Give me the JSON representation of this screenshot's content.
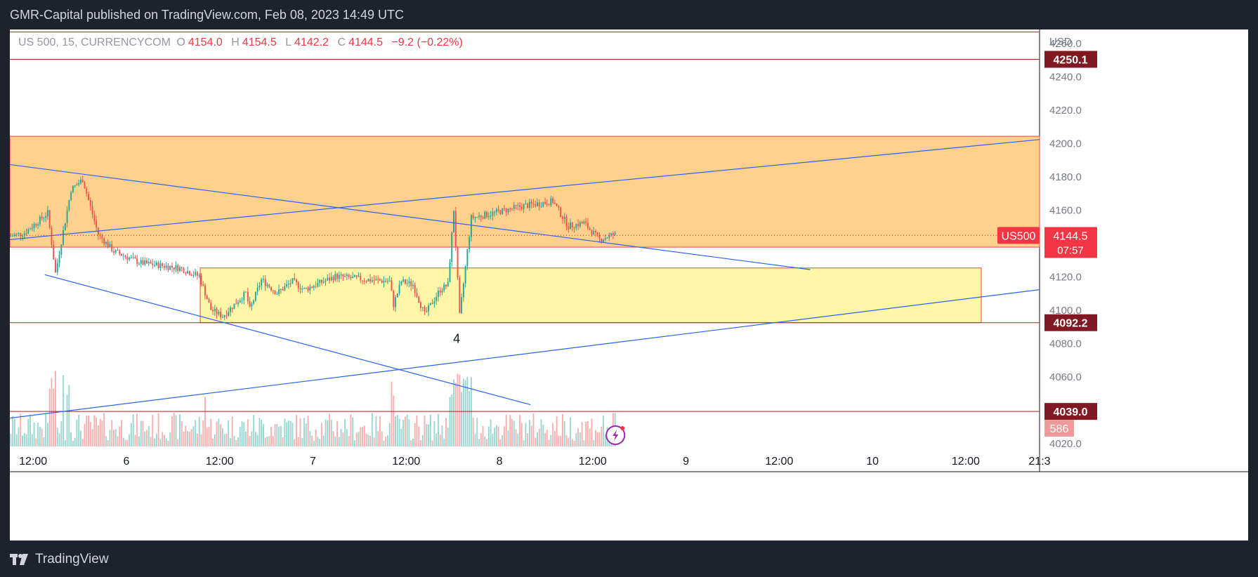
{
  "header": {
    "publisher_text": "GMR-Capital published on TradingView.com, Feb 08, 2023 14:49 UTC"
  },
  "footer": {
    "brand": "TradingView"
  },
  "legend": {
    "symbol": "US 500, 15, CURRENCYCOM",
    "o_label": "O",
    "o_value": "4154.0",
    "h_label": "H",
    "h_value": "4154.5",
    "l_label": "L",
    "l_value": "4142.2",
    "c_label": "C",
    "c_value": "4144.5",
    "change": "−9.2 (−0.22%)"
  },
  "colors": {
    "up": "#26a69a",
    "down": "#ef5350",
    "trendline": "#2962ff",
    "orange_zone": "#ffcc80",
    "yellow_zone": "#fff59d",
    "level_line": "#b71c1c",
    "frame_bg": "#1e222d",
    "last_price_bg": "#f23645",
    "level_label_bg": "#801922"
  },
  "chart_data": {
    "type": "candlestick",
    "symbol": "US500",
    "currency": "USD",
    "timeframe": "15",
    "x": {
      "unit": "date",
      "range": [
        "2023-02-05T09:00",
        "2023-02-10T21:30"
      ],
      "ticks": [
        {
          "t": "2023-02-05T12:00",
          "label": "12:00"
        },
        {
          "t": "2023-02-06T00:00",
          "label": "6"
        },
        {
          "t": "2023-02-06T12:00",
          "label": "12:00"
        },
        {
          "t": "2023-02-07T00:00",
          "label": "7"
        },
        {
          "t": "2023-02-07T12:00",
          "label": "12:00"
        },
        {
          "t": "2023-02-08T00:00",
          "label": "8"
        },
        {
          "t": "2023-02-08T12:00",
          "label": "12:00"
        },
        {
          "t": "2023-02-09T00:00",
          "label": "9"
        },
        {
          "t": "2023-02-09T12:00",
          "label": "12:00"
        },
        {
          "t": "2023-02-10T00:00",
          "label": "10"
        },
        {
          "t": "2023-02-10T12:00",
          "label": "12:00"
        },
        {
          "t": "2023-02-10T21:30",
          "label": "21:3"
        }
      ]
    },
    "y": {
      "unit": "USD",
      "range": [
        4018,
        4268
      ],
      "ticks": [
        4020,
        4040,
        4060,
        4080,
        4100,
        4120,
        4140,
        4160,
        4180,
        4200,
        4220,
        4240,
        4260
      ],
      "tick_labels": [
        "4020.0",
        "4040.0",
        "4060.0",
        "4080.0",
        "4100.0",
        "4120.0",
        "4140.0",
        "4160.0",
        "4180.0",
        "4200.0",
        "4220.0",
        "4240.0",
        "4260.0"
      ]
    },
    "price_path": [
      [
        "2023-02-05T09:00",
        4144
      ],
      [
        "2023-02-05T11:00",
        4146
      ],
      [
        "2023-02-05T14:00",
        4158
      ],
      [
        "2023-02-05T15:00",
        4122
      ],
      [
        "2023-02-05T17:00",
        4172
      ],
      [
        "2023-02-05T18:30",
        4178
      ],
      [
        "2023-02-05T20:30",
        4145
      ],
      [
        "2023-02-05T22:30",
        4135
      ],
      [
        "2023-02-06T02:00",
        4128
      ],
      [
        "2023-02-06T07:00",
        4125
      ],
      [
        "2023-02-06T09:30",
        4120
      ],
      [
        "2023-02-06T11:00",
        4100
      ],
      [
        "2023-02-06T12:30",
        4096
      ],
      [
        "2023-02-06T15:30",
        4110
      ],
      [
        "2023-02-06T16:00",
        4100
      ],
      [
        "2023-02-06T17:30",
        4118
      ],
      [
        "2023-02-06T19:30",
        4110
      ],
      [
        "2023-02-06T21:30",
        4117
      ],
      [
        "2023-02-06T23:00",
        4112
      ],
      [
        "2023-02-07T03:00",
        4120
      ],
      [
        "2023-02-07T07:00",
        4118
      ],
      [
        "2023-02-07T10:00",
        4117
      ],
      [
        "2023-02-07T10:30",
        4103
      ],
      [
        "2023-02-07T11:30",
        4117
      ],
      [
        "2023-02-07T13:00",
        4115
      ],
      [
        "2023-02-07T14:30",
        4097
      ],
      [
        "2023-02-07T16:30",
        4112
      ],
      [
        "2023-02-07T17:30",
        4115
      ],
      [
        "2023-02-07T18:15",
        4160
      ],
      [
        "2023-02-07T19:00",
        4096
      ],
      [
        "2023-02-07T20:30",
        4155
      ],
      [
        "2023-02-07T22:30",
        4157
      ],
      [
        "2023-02-08T03:00",
        4162
      ],
      [
        "2023-02-08T07:00",
        4165
      ],
      [
        "2023-02-08T09:00",
        4150
      ],
      [
        "2023-02-08T11:00",
        4152
      ],
      [
        "2023-02-08T13:00",
        4142
      ],
      [
        "2023-02-08T14:45",
        4145
      ]
    ],
    "last_price": {
      "label": "US500",
      "value": "4144.5",
      "countdown": "07:57"
    },
    "volume_label": "586",
    "level_lines": [
      {
        "value": 4266.5,
        "label": ""
      },
      {
        "value": 4250.1,
        "label": "4250.1"
      },
      {
        "value": 4092.2,
        "label": "4092.2"
      },
      {
        "value": 4039.0,
        "label": "4039.0"
      }
    ],
    "zones": [
      {
        "kind": "orange",
        "x": [
          "2023-02-05T09:00",
          "2023-02-10T21:30"
        ],
        "y": [
          4137.5,
          4204
        ]
      },
      {
        "kind": "yellow",
        "x": [
          "2023-02-06T09:30",
          "2023-02-10T14:00"
        ],
        "y": [
          4092.2,
          4125
        ]
      }
    ],
    "trendlines": [
      {
        "from": [
          "2023-02-05T09:00",
          4187
        ],
        "to": [
          "2023-02-09T16:00",
          4124
        ]
      },
      {
        "from": [
          "2023-02-05T09:00",
          4142
        ],
        "to": [
          "2023-02-10T21:30",
          4202
        ]
      },
      {
        "from": [
          "2023-02-05T13:30",
          4121
        ],
        "to": [
          "2023-02-08T04:00",
          4043
        ]
      },
      {
        "from": [
          "2023-02-05T09:00",
          4035
        ],
        "to": [
          "2023-02-10T21:30",
          4112
        ]
      }
    ],
    "annotations": [
      {
        "t": "2023-02-07T18:30",
        "y": 4080,
        "text": "4"
      }
    ]
  }
}
